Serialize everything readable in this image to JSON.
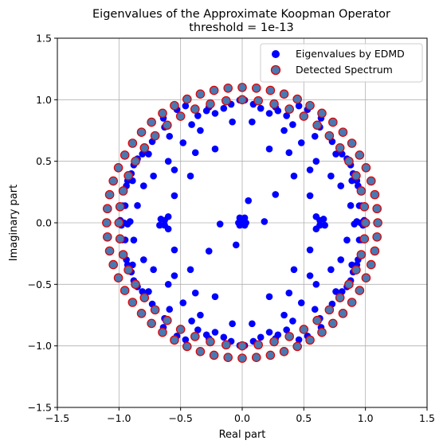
{
  "chart_data": {
    "type": "scatter",
    "title": "Eigenvalues of the Approximate Koopman Operator",
    "subtitle": "threshold = 1e-13",
    "xlabel": "Real part",
    "ylabel": "Imaginary part",
    "xlim": [
      -1.5,
      1.5
    ],
    "ylim": [
      -1.5,
      1.5
    ],
    "xticks": [
      -1.5,
      -1.0,
      -0.5,
      0.0,
      0.5,
      1.0,
      1.5
    ],
    "yticks": [
      -1.5,
      -1.0,
      -0.5,
      0.0,
      0.5,
      1.0,
      1.5
    ],
    "xtick_labels": [
      "−1.5",
      "−1.0",
      "−0.5",
      "0.0",
      "0.5",
      "1.0",
      "1.5"
    ],
    "ytick_labels": [
      "−1.5",
      "−1.0",
      "−0.5",
      "0.0",
      "0.5",
      "1.0",
      "1.5"
    ],
    "grid": true,
    "legend_position": "top-right",
    "series": [
      {
        "name": "Eigenvalues by EDMD",
        "color": "#0000ff",
        "edge_color": "#0000ff",
        "points": [
          [
            0.02,
            0.997
          ],
          [
            0.09,
            0.963
          ],
          [
            0.22,
            0.889
          ],
          [
            0.29,
            0.91
          ],
          [
            0.41,
            0.798
          ],
          [
            0.5,
            0.866
          ],
          [
            0.59,
            0.703
          ],
          [
            0.63,
            0.777
          ],
          [
            0.76,
            0.559
          ],
          [
            0.81,
            0.559
          ],
          [
            0.89,
            0.342
          ],
          [
            0.93,
            0.342
          ],
          [
            0.95,
            0.139
          ],
          [
            0.97,
            0.139
          ],
          [
            -0.02,
            0.997
          ],
          [
            -0.09,
            0.963
          ],
          [
            -0.22,
            0.889
          ],
          [
            -0.29,
            0.91
          ],
          [
            -0.41,
            0.798
          ],
          [
            -0.5,
            0.866
          ],
          [
            -0.59,
            0.703
          ],
          [
            -0.63,
            0.777
          ],
          [
            -0.76,
            0.559
          ],
          [
            -0.81,
            0.559
          ],
          [
            -0.89,
            0.342
          ],
          [
            -0.93,
            0.342
          ],
          [
            -0.95,
            0.139
          ],
          [
            -0.97,
            0.139
          ],
          [
            0.02,
            -0.997
          ],
          [
            0.09,
            -0.963
          ],
          [
            0.22,
            -0.889
          ],
          [
            0.29,
            -0.91
          ],
          [
            0.41,
            -0.798
          ],
          [
            0.5,
            -0.866
          ],
          [
            0.59,
            -0.703
          ],
          [
            0.63,
            -0.777
          ],
          [
            0.76,
            -0.559
          ],
          [
            0.81,
            -0.559
          ],
          [
            0.89,
            -0.342
          ],
          [
            0.93,
            -0.342
          ],
          [
            0.95,
            -0.139
          ],
          [
            0.97,
            -0.139
          ],
          [
            -0.02,
            -0.997
          ],
          [
            -0.09,
            -0.963
          ],
          [
            -0.22,
            -0.889
          ],
          [
            -0.29,
            -0.91
          ],
          [
            -0.41,
            -0.798
          ],
          [
            -0.5,
            -0.866
          ],
          [
            -0.59,
            -0.703
          ],
          [
            -0.63,
            -0.777
          ],
          [
            -0.76,
            -0.559
          ],
          [
            -0.81,
            -0.559
          ],
          [
            -0.89,
            -0.342
          ],
          [
            -0.93,
            -0.342
          ],
          [
            -0.95,
            -0.139
          ],
          [
            -0.97,
            -0.139
          ],
          [
            0.08,
            0.82
          ],
          [
            0.15,
            0.93
          ],
          [
            0.27,
            0.94
          ],
          [
            0.36,
            0.87
          ],
          [
            0.46,
            0.95
          ],
          [
            0.53,
            0.92
          ],
          [
            0.64,
            0.85
          ],
          [
            0.7,
            0.71
          ],
          [
            0.73,
            0.66
          ],
          [
            0.85,
            0.52
          ],
          [
            0.88,
            0.47
          ],
          [
            0.9,
            0.4
          ],
          [
            0.94,
            0.3
          ],
          [
            -0.08,
            0.82
          ],
          [
            -0.15,
            0.93
          ],
          [
            -0.27,
            0.94
          ],
          [
            -0.36,
            0.87
          ],
          [
            -0.46,
            0.95
          ],
          [
            -0.53,
            0.92
          ],
          [
            -0.64,
            0.85
          ],
          [
            -0.7,
            0.71
          ],
          [
            -0.73,
            0.66
          ],
          [
            -0.85,
            0.52
          ],
          [
            -0.88,
            0.47
          ],
          [
            -0.9,
            0.4
          ],
          [
            -0.94,
            0.3
          ],
          [
            0.08,
            -0.82
          ],
          [
            0.15,
            -0.93
          ],
          [
            0.27,
            -0.94
          ],
          [
            0.36,
            -0.87
          ],
          [
            0.46,
            -0.95
          ],
          [
            0.53,
            -0.92
          ],
          [
            0.64,
            -0.85
          ],
          [
            0.7,
            -0.71
          ],
          [
            0.73,
            -0.66
          ],
          [
            0.85,
            -0.52
          ],
          [
            0.88,
            -0.47
          ],
          [
            0.9,
            -0.4
          ],
          [
            0.94,
            -0.3
          ],
          [
            -0.08,
            -0.82
          ],
          [
            -0.15,
            -0.93
          ],
          [
            -0.27,
            -0.94
          ],
          [
            -0.36,
            -0.87
          ],
          [
            -0.46,
            -0.95
          ],
          [
            -0.53,
            -0.92
          ],
          [
            -0.64,
            -0.85
          ],
          [
            -0.7,
            -0.71
          ],
          [
            -0.73,
            -0.66
          ],
          [
            -0.85,
            -0.52
          ],
          [
            -0.88,
            -0.47
          ],
          [
            -0.9,
            -0.4
          ],
          [
            -0.94,
            -0.3
          ],
          [
            0.22,
            0.6
          ],
          [
            0.34,
            0.75
          ],
          [
            0.38,
            0.57
          ],
          [
            0.48,
            0.65
          ],
          [
            0.55,
            0.43
          ],
          [
            0.6,
            0.5
          ],
          [
            0.72,
            0.38
          ],
          [
            0.8,
            0.3
          ],
          [
            -0.22,
            0.6
          ],
          [
            -0.34,
            0.75
          ],
          [
            -0.38,
            0.57
          ],
          [
            -0.48,
            0.65
          ],
          [
            -0.55,
            0.43
          ],
          [
            -0.6,
            0.5
          ],
          [
            -0.72,
            0.38
          ],
          [
            -0.8,
            0.3
          ],
          [
            0.22,
            -0.6
          ],
          [
            0.34,
            -0.75
          ],
          [
            0.38,
            -0.57
          ],
          [
            0.48,
            -0.65
          ],
          [
            0.55,
            -0.43
          ],
          [
            0.6,
            -0.5
          ],
          [
            0.72,
            -0.38
          ],
          [
            0.8,
            -0.3
          ],
          [
            -0.22,
            -0.6
          ],
          [
            -0.34,
            -0.75
          ],
          [
            -0.38,
            -0.57
          ],
          [
            -0.48,
            -0.65
          ],
          [
            -0.55,
            -0.43
          ],
          [
            -0.6,
            -0.5
          ],
          [
            -0.72,
            -0.38
          ],
          [
            -0.8,
            -0.3
          ],
          [
            0.42,
            0.38
          ],
          [
            0.55,
            0.22
          ],
          [
            0.6,
            0.05
          ],
          [
            0.63,
            -0.02
          ],
          [
            -0.42,
            0.38
          ],
          [
            -0.55,
            0.22
          ],
          [
            -0.6,
            0.05
          ],
          [
            -0.63,
            -0.02
          ],
          [
            0.42,
            -0.38
          ],
          [
            0.55,
            -0.22
          ],
          [
            0.6,
            -0.05
          ],
          [
            0.63,
            0.02
          ],
          [
            -0.42,
            -0.38
          ],
          [
            -0.55,
            -0.22
          ],
          [
            -0.6,
            -0.05
          ],
          [
            -0.63,
            0.02
          ],
          [
            0.27,
            0.23
          ],
          [
            0.18,
            0.01
          ],
          [
            0.05,
            0.18
          ],
          [
            0.02,
            0.04
          ],
          [
            -0.02,
            0.04
          ],
          [
            0.02,
            -0.02
          ],
          [
            -0.02,
            -0.02
          ],
          [
            0.0,
            0.0
          ],
          [
            -0.03,
            0.0
          ],
          [
            0.03,
            0.0
          ],
          [
            -0.27,
            -0.23
          ],
          [
            -0.18,
            -0.01
          ],
          [
            -0.05,
            -0.18
          ],
          [
            0.66,
            0.03
          ],
          [
            0.67,
            -0.02
          ],
          [
            0.85,
            -0.14
          ],
          [
            0.88,
            0.14
          ],
          [
            0.91,
            -0.01
          ],
          [
            0.93,
            0.01
          ],
          [
            -0.66,
            0.03
          ],
          [
            -0.67,
            -0.02
          ],
          [
            -0.85,
            0.14
          ],
          [
            -0.88,
            -0.14
          ],
          [
            -0.91,
            0.01
          ],
          [
            -0.93,
            -0.01
          ],
          [
            -0.99,
            0.02
          ],
          [
            -0.98,
            -0.02
          ],
          [
            -0.96,
            0.0
          ],
          [
            0.99,
            0.02
          ],
          [
            0.98,
            -0.02
          ],
          [
            0.96,
            0.0
          ]
        ]
      },
      {
        "name": "Detected Spectrum",
        "color": "#4a78b0",
        "edge_color": "#e00000",
        "rings": [
          {
            "radius": 1.0,
            "count": 48,
            "phase_deg": 0
          },
          {
            "radius": 1.1,
            "count": 60,
            "phase_deg": 0
          }
        ]
      }
    ]
  }
}
